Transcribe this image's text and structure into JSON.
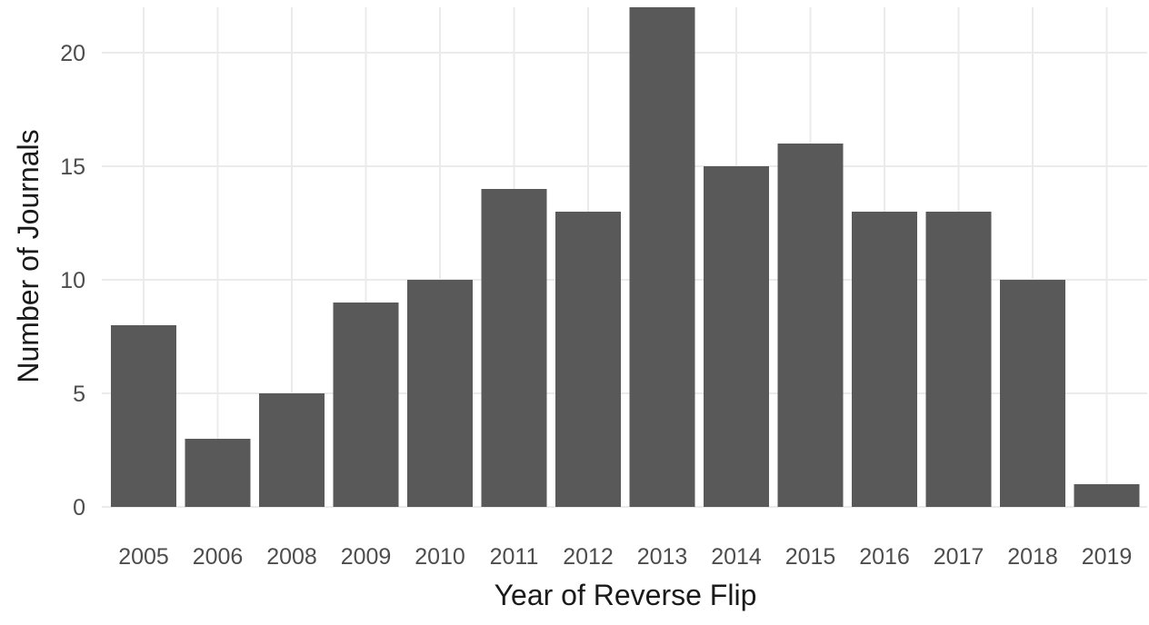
{
  "chart_data": {
    "type": "bar",
    "title": "",
    "xlabel": "Year of Reverse Flip",
    "ylabel": "Number of Journals",
    "categories": [
      "2005",
      "2006",
      "2008",
      "2009",
      "2010",
      "2011",
      "2012",
      "2013",
      "2014",
      "2015",
      "2016",
      "2017",
      "2018",
      "2019"
    ],
    "values": [
      8,
      3,
      5,
      9,
      10,
      14,
      13,
      22,
      15,
      16,
      13,
      13,
      10,
      1
    ],
    "ylim": [
      0,
      22
    ],
    "yticks": [
      0,
      5,
      10,
      15,
      20
    ],
    "grid": true,
    "legend": "none",
    "bar_color": "#595959",
    "grid_color": "#ebebeb"
  }
}
